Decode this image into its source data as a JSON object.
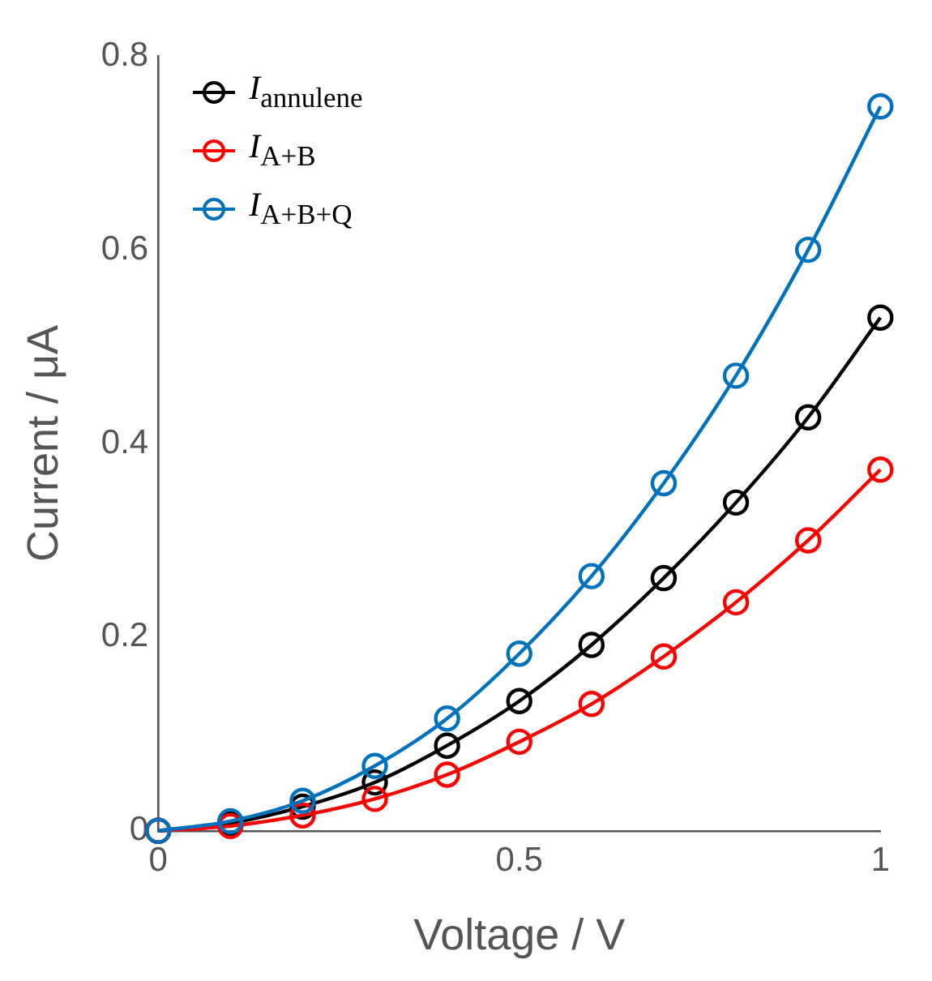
{
  "chart_data": {
    "type": "line",
    "xlabel": "Voltage / V",
    "ylabel": "Current / μA",
    "x": [
      0,
      0.1,
      0.2,
      0.3,
      0.4,
      0.5,
      0.6,
      0.7,
      0.8,
      0.9,
      1.0
    ],
    "series": [
      {
        "name": "I$_{annulene}$",
        "color": "#000000",
        "values": [
          0,
          0.008,
          0.025,
          0.05,
          0.088,
          0.134,
          0.192,
          0.261,
          0.339,
          0.427,
          0.53
        ]
      },
      {
        "name": "I$_{A+B}$",
        "color": "#ff0000",
        "values": [
          0,
          0.005,
          0.016,
          0.033,
          0.058,
          0.092,
          0.131,
          0.18,
          0.236,
          0.3,
          0.373
        ]
      },
      {
        "name": "I$_{A+B+Q}$",
        "color": "#0072bd",
        "values": [
          0,
          0.01,
          0.031,
          0.067,
          0.116,
          0.183,
          0.263,
          0.359,
          0.47,
          0.6,
          0.748
        ]
      }
    ],
    "xlim": [
      0,
      1
    ],
    "xticks": [
      0,
      0.5,
      1
    ],
    "ylim": [
      0,
      0.8
    ],
    "yticks": [
      0,
      0.2,
      0.4,
      0.6,
      0.8
    ],
    "marker": "circle",
    "line_style": "solid",
    "legend": "top left",
    "grid": false
  }
}
